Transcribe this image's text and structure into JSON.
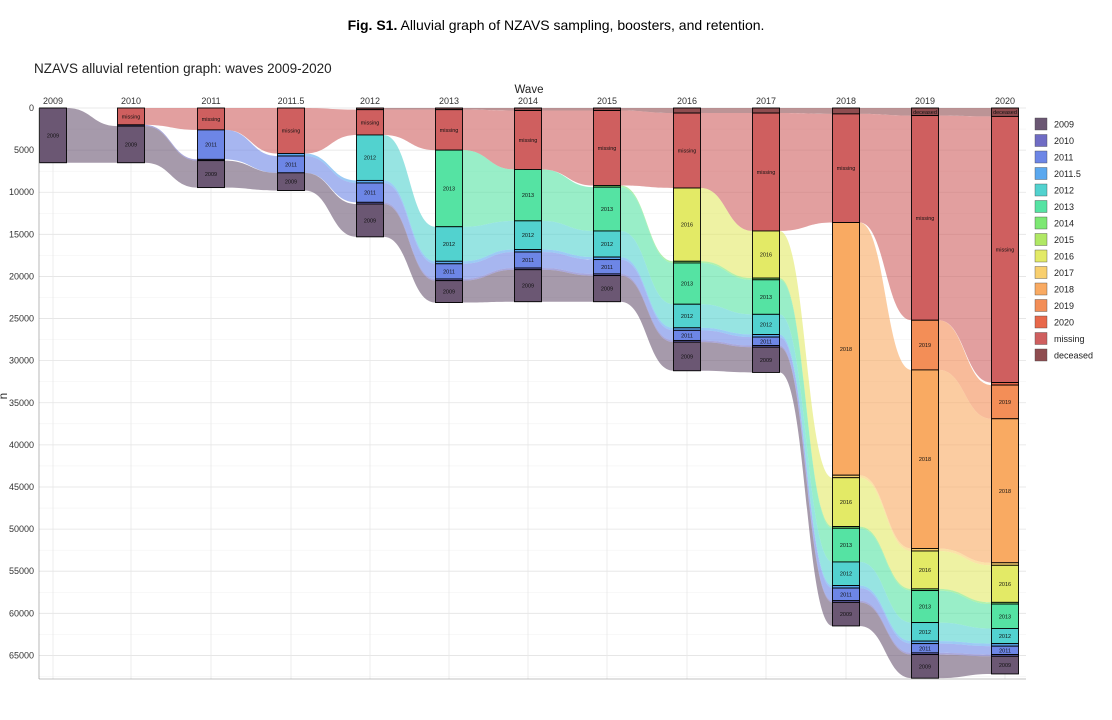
{
  "caption": {
    "label": "Fig. S1.",
    "text": "Alluvial graph of NZAVS sampling, boosters, and retention."
  },
  "colors": {
    "2009": "#6b5773",
    "2010": "#6f6cc4",
    "2011": "#6d86e6",
    "2011.5": "#5aa8ef",
    "2012": "#52d2cf",
    "2013": "#55e3a3",
    "2014": "#7de873",
    "2015": "#b0e864",
    "2016": "#e3ea66",
    "2017": "#f8cf6e",
    "2018": "#f9aa62",
    "2019": "#f38e57",
    "2020": "#e8684a",
    "missing": "#cf5f5f",
    "deceased": "#8f4d50"
  },
  "chart_data": {
    "type": "alluvial",
    "title": "NZAVS alluvial retention graph: waves 2009-2020",
    "xlabel": "Wave",
    "ylabel": "n",
    "x": [
      "2009",
      "2010",
      "2011",
      "2011.5",
      "2012",
      "2013",
      "2014",
      "2015",
      "2016",
      "2017",
      "2018",
      "2019",
      "2020"
    ],
    "yticks": [
      0,
      5000,
      10000,
      15000,
      20000,
      25000,
      30000,
      35000,
      40000,
      45000,
      50000,
      55000,
      60000,
      65000
    ],
    "ylim": [
      0,
      67800
    ],
    "y_reversed": true,
    "grid": true,
    "legend_position": "right",
    "legend": [
      "2009",
      "2010",
      "2011",
      "2011.5",
      "2012",
      "2013",
      "2014",
      "2015",
      "2016",
      "2017",
      "2018",
      "2019",
      "2020",
      "missing",
      "deceased"
    ],
    "stacks": [
      {
        "wave": "2009",
        "segments": [
          {
            "group": "2009",
            "n": 6500
          }
        ]
      },
      {
        "wave": "2010",
        "segments": [
          {
            "group": "missing",
            "n": 2000
          },
          {
            "group": "2010",
            "n": 150
          },
          {
            "group": "2009",
            "n": 4350
          }
        ]
      },
      {
        "wave": "2011",
        "segments": [
          {
            "group": "missing",
            "n": 2600
          },
          {
            "group": "2011",
            "n": 3500
          },
          {
            "group": "2010",
            "n": 150
          },
          {
            "group": "2009",
            "n": 3200
          }
        ]
      },
      {
        "wave": "2011.5",
        "segments": [
          {
            "group": "missing",
            "n": 5400
          },
          {
            "group": "2011.5",
            "n": 300
          },
          {
            "group": "2011",
            "n": 2000
          },
          {
            "group": "2009",
            "n": 2100
          }
        ]
      },
      {
        "wave": "2012",
        "segments": [
          {
            "group": "deceased",
            "n": 200
          },
          {
            "group": "missing",
            "n": 3000
          },
          {
            "group": "2012",
            "n": 5400
          },
          {
            "group": "2011.5",
            "n": 300
          },
          {
            "group": "2011",
            "n": 2300
          },
          {
            "group": "2010",
            "n": 200
          },
          {
            "group": "2009",
            "n": 3900
          }
        ]
      },
      {
        "wave": "2013",
        "segments": [
          {
            "group": "deceased",
            "n": 200
          },
          {
            "group": "missing",
            "n": 4800
          },
          {
            "group": "2013",
            "n": 9100
          },
          {
            "group": "2012",
            "n": 4100
          },
          {
            "group": "2011.5",
            "n": 300
          },
          {
            "group": "2011",
            "n": 1800
          },
          {
            "group": "2010",
            "n": 200
          },
          {
            "group": "2009",
            "n": 2600
          }
        ]
      },
      {
        "wave": "2014",
        "segments": [
          {
            "group": "deceased",
            "n": 300
          },
          {
            "group": "missing",
            "n": 7000
          },
          {
            "group": "2013",
            "n": 6100
          },
          {
            "group": "2012",
            "n": 3400
          },
          {
            "group": "2011.5",
            "n": 300
          },
          {
            "group": "2011",
            "n": 1900
          },
          {
            "group": "2010",
            "n": 200
          },
          {
            "group": "2009",
            "n": 3800
          }
        ]
      },
      {
        "wave": "2015",
        "segments": [
          {
            "group": "deceased",
            "n": 300
          },
          {
            "group": "missing",
            "n": 8900
          },
          {
            "group": "2014",
            "n": 200
          },
          {
            "group": "2013",
            "n": 5200
          },
          {
            "group": "2012",
            "n": 3100
          },
          {
            "group": "2011.5",
            "n": 300
          },
          {
            "group": "2011",
            "n": 1700
          },
          {
            "group": "2010",
            "n": 200
          },
          {
            "group": "2009",
            "n": 3100
          }
        ]
      },
      {
        "wave": "2016",
        "segments": [
          {
            "group": "deceased",
            "n": 600
          },
          {
            "group": "missing",
            "n": 8900
          },
          {
            "group": "2016",
            "n": 8700
          },
          {
            "group": "2014",
            "n": 200
          },
          {
            "group": "2013",
            "n": 4900
          },
          {
            "group": "2012",
            "n": 2800
          },
          {
            "group": "2011.5",
            "n": 300
          },
          {
            "group": "2011",
            "n": 1200
          },
          {
            "group": "2010",
            "n": 200
          },
          {
            "group": "2009",
            "n": 3400
          }
        ]
      },
      {
        "wave": "2017",
        "segments": [
          {
            "group": "deceased",
            "n": 600
          },
          {
            "group": "missing",
            "n": 14000
          },
          {
            "group": "2016",
            "n": 5600
          },
          {
            "group": "2014",
            "n": 200
          },
          {
            "group": "2013",
            "n": 4100
          },
          {
            "group": "2012",
            "n": 2400
          },
          {
            "group": "2011.5",
            "n": 300
          },
          {
            "group": "2011",
            "n": 1000
          },
          {
            "group": "2010",
            "n": 200
          },
          {
            "group": "2009",
            "n": 3000
          }
        ]
      },
      {
        "wave": "2018",
        "segments": [
          {
            "group": "deceased",
            "n": 700
          },
          {
            "group": "missing",
            "n": 12900
          },
          {
            "group": "2018",
            "n": 30000
          },
          {
            "group": "2017",
            "n": 300
          },
          {
            "group": "2016",
            "n": 5800
          },
          {
            "group": "2014",
            "n": 200
          },
          {
            "group": "2013",
            "n": 4000
          },
          {
            "group": "2012",
            "n": 2800
          },
          {
            "group": "2011.5",
            "n": 300
          },
          {
            "group": "2011",
            "n": 1500
          },
          {
            "group": "2010",
            "n": 200
          },
          {
            "group": "2009",
            "n": 2800
          }
        ]
      },
      {
        "wave": "2019",
        "segments": [
          {
            "group": "deceased",
            "n": 900
          },
          {
            "group": "missing",
            "n": 24300
          },
          {
            "group": "2019",
            "n": 5900
          },
          {
            "group": "2018",
            "n": 21200
          },
          {
            "group": "2017",
            "n": 300
          },
          {
            "group": "2016",
            "n": 4500
          },
          {
            "group": "2014",
            "n": 200
          },
          {
            "group": "2013",
            "n": 3800
          },
          {
            "group": "2012",
            "n": 2200
          },
          {
            "group": "2011.5",
            "n": 300
          },
          {
            "group": "2011",
            "n": 1100
          },
          {
            "group": "2010",
            "n": 200
          },
          {
            "group": "2009",
            "n": 2800
          }
        ]
      },
      {
        "wave": "2020",
        "segments": [
          {
            "group": "deceased",
            "n": 1000
          },
          {
            "group": "missing",
            "n": 31600
          },
          {
            "group": "2020",
            "n": 300
          },
          {
            "group": "2019",
            "n": 4000
          },
          {
            "group": "2018",
            "n": 17100
          },
          {
            "group": "2017",
            "n": 300
          },
          {
            "group": "2016",
            "n": 4400
          },
          {
            "group": "2014",
            "n": 200
          },
          {
            "group": "2013",
            "n": 2900
          },
          {
            "group": "2012",
            "n": 1800
          },
          {
            "group": "2011.5",
            "n": 300
          },
          {
            "group": "2011",
            "n": 1000
          },
          {
            "group": "2010",
            "n": 200
          },
          {
            "group": "2009",
            "n": 2100
          }
        ]
      }
    ]
  }
}
